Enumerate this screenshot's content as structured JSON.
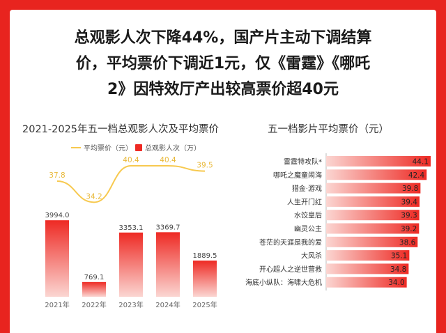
{
  "headline": {
    "lines": [
      "总观影人次下降44%，国产片主动下调结算",
      "价，平均票价下调近1元，仅《雷霆》《哪吒",
      "2》因特效厅产出较高票价超40元"
    ]
  },
  "colors": {
    "background": "#e8241f",
    "bar_top": "#ee2a24",
    "bar_bottom": "#fbd6d2",
    "line": "#f7c94f",
    "line_label": "#e9b93a",
    "hbar_start": "#fbd6d2",
    "hbar_end": "#ee2a24"
  },
  "chart_data": [
    {
      "type": "bar",
      "title": "2021-2025年五一档总观影人次及平均票价",
      "categories": [
        "2021年",
        "2022年",
        "2023年",
        "2024年",
        "2025年"
      ],
      "series": [
        {
          "name": "总观影人次（万）",
          "type": "bar",
          "values": [
            3994.0,
            769.1,
            3353.1,
            3369.7,
            1889.5
          ]
        },
        {
          "name": "平均票价（元）",
          "type": "line",
          "values": [
            37.8,
            34.2,
            40.4,
            40.4,
            39.5
          ]
        }
      ],
      "legend": "top",
      "grid": false
    },
    {
      "type": "bar",
      "orientation": "horizontal",
      "title": "五一档影片平均票价（元）",
      "categories": [
        "雷霆特攻队*",
        "哪吒之魔童闹海",
        "猎金·游戏",
        "人生开门红",
        "水饺皇后",
        "幽灵公主",
        "苍茫的天涯是我的爱",
        "大风杀",
        "开心超人之逆世营救",
        "海底小纵队：海啸大危机"
      ],
      "values": [
        44.1,
        42.4,
        39.8,
        39.4,
        39.3,
        39.2,
        38.6,
        35.1,
        34.8,
        34.0
      ],
      "grid": false
    }
  ]
}
